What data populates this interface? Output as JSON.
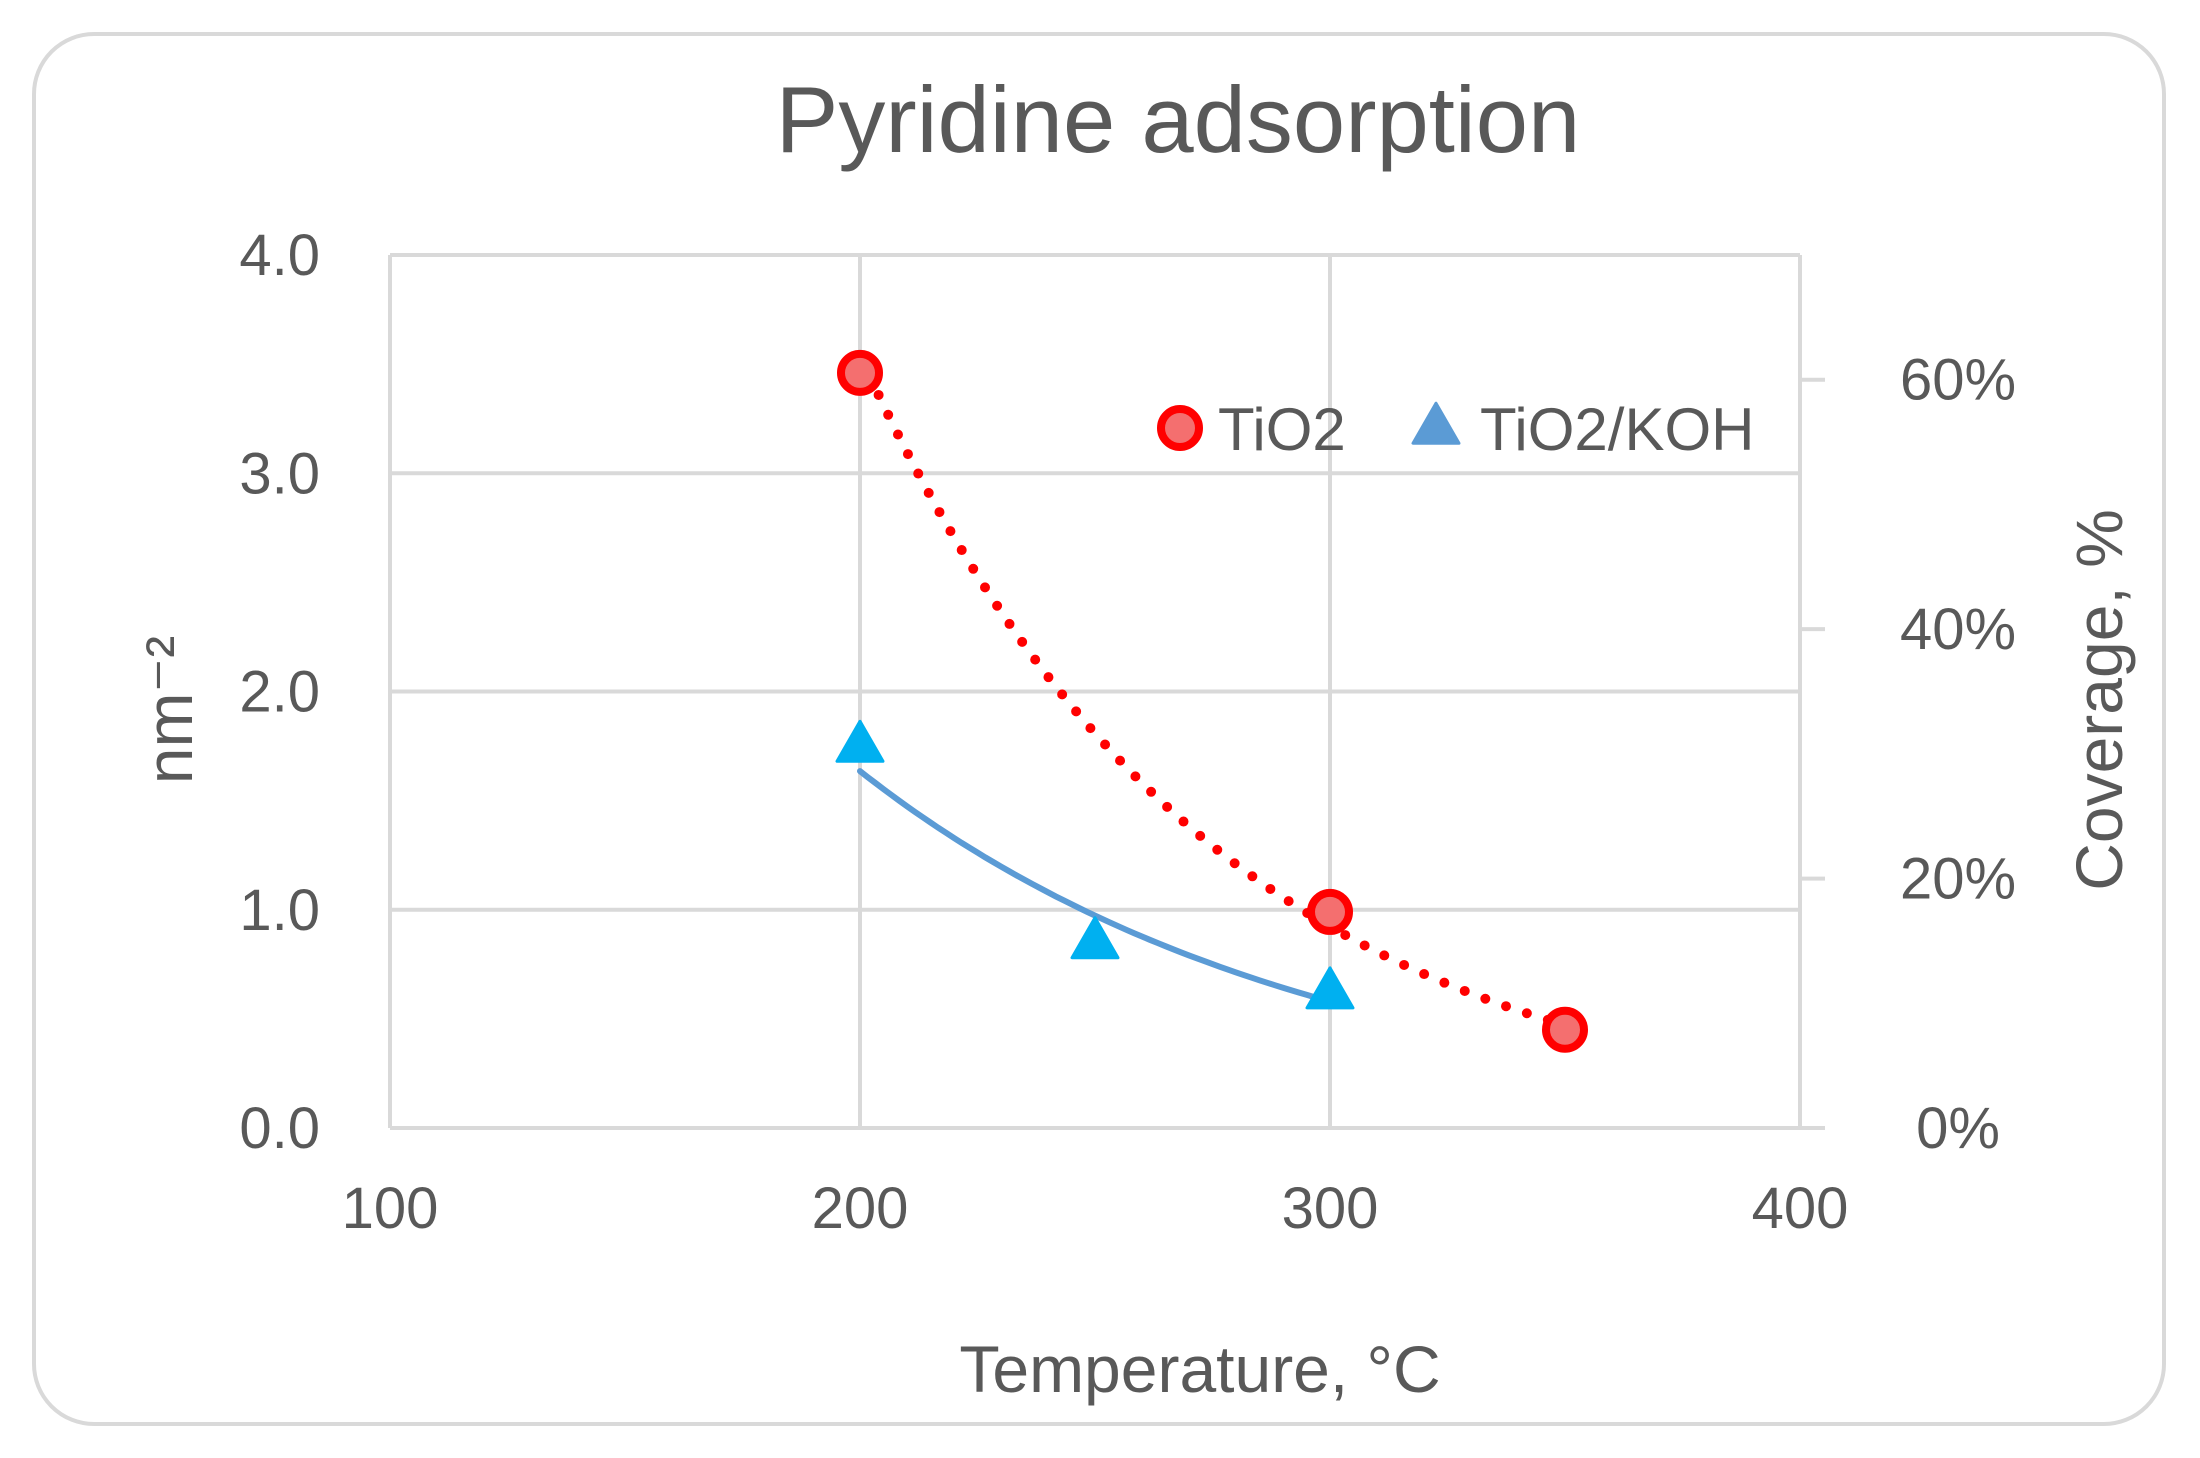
{
  "chart_data": {
    "type": "scatter",
    "title": "Pyridine adsorption",
    "xlabel": "Temperature, °C",
    "ylabel": "nm⁻²",
    "y2label": "Coverage, %",
    "xlim": [
      100,
      400
    ],
    "ylim": [
      0,
      4
    ],
    "y2lim": [
      0,
      70
    ],
    "xticks": [
      100,
      200,
      300,
      400
    ],
    "xtick_labels": [
      "100",
      "200",
      "300",
      "400"
    ],
    "yticks": [
      0,
      1,
      2,
      3,
      4
    ],
    "ytick_labels": [
      "0.0",
      "1.0",
      "2.0",
      "3.0",
      "4.0"
    ],
    "y2ticks": [
      0,
      20,
      40,
      60
    ],
    "y2tick_labels": [
      "0%",
      "20%",
      "40%",
      "60%"
    ],
    "grid": true,
    "legend_position": "top-right",
    "series": [
      {
        "name": "TiO2",
        "marker": "circle",
        "color": "#ff0000",
        "fill": "#f46f6f",
        "trendline": "dotted",
        "x": [
          200,
          300,
          350
        ],
        "y": [
          3.46,
          0.99,
          0.45
        ]
      },
      {
        "name": "TiO2/KOH",
        "marker": "triangle",
        "color": "#00b0f0",
        "trend_color": "#5b9bd5",
        "trendline": "solid",
        "x": [
          200,
          250,
          300
        ],
        "y": [
          1.75,
          0.85,
          0.62
        ]
      }
    ]
  }
}
